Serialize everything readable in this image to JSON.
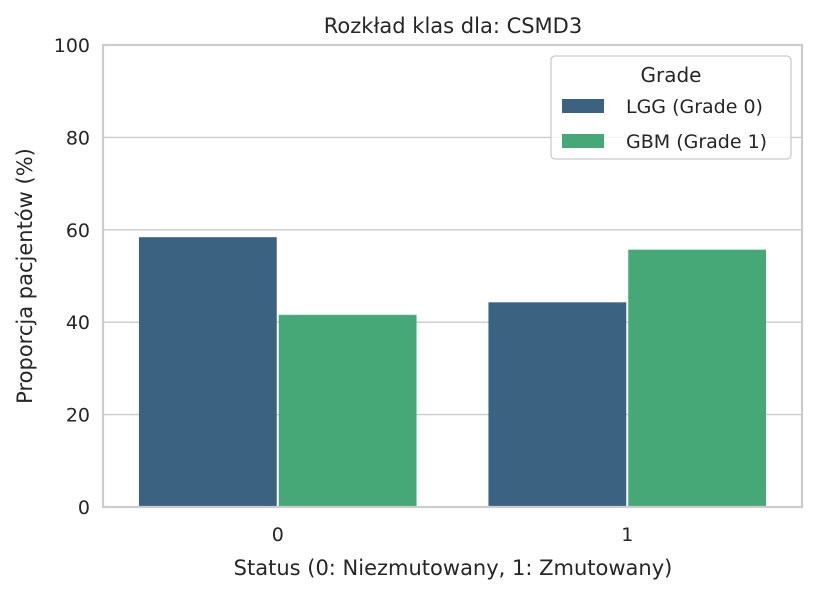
{
  "chart_data": {
    "type": "bar",
    "title": "Rozkład klas dla: CSMD3",
    "xlabel": "Status (0: Niezmutowany, 1: Zmutowany)",
    "ylabel": "Proporcja pacjentów (%)",
    "categories": [
      "0",
      "1"
    ],
    "ylim": [
      0,
      100
    ],
    "yticks": [
      "0",
      "20",
      "40",
      "60",
      "80",
      "100"
    ],
    "grid": "horizontal",
    "legend": {
      "title": "Grade",
      "placement": "top-right"
    },
    "series": [
      {
        "name": "LGG (Grade 0)",
        "color": "#3b6381",
        "values": [
          58.4,
          44.3
        ]
      },
      {
        "name": "GBM (Grade 1)",
        "color": "#46a877",
        "values": [
          41.6,
          55.7
        ]
      }
    ]
  }
}
